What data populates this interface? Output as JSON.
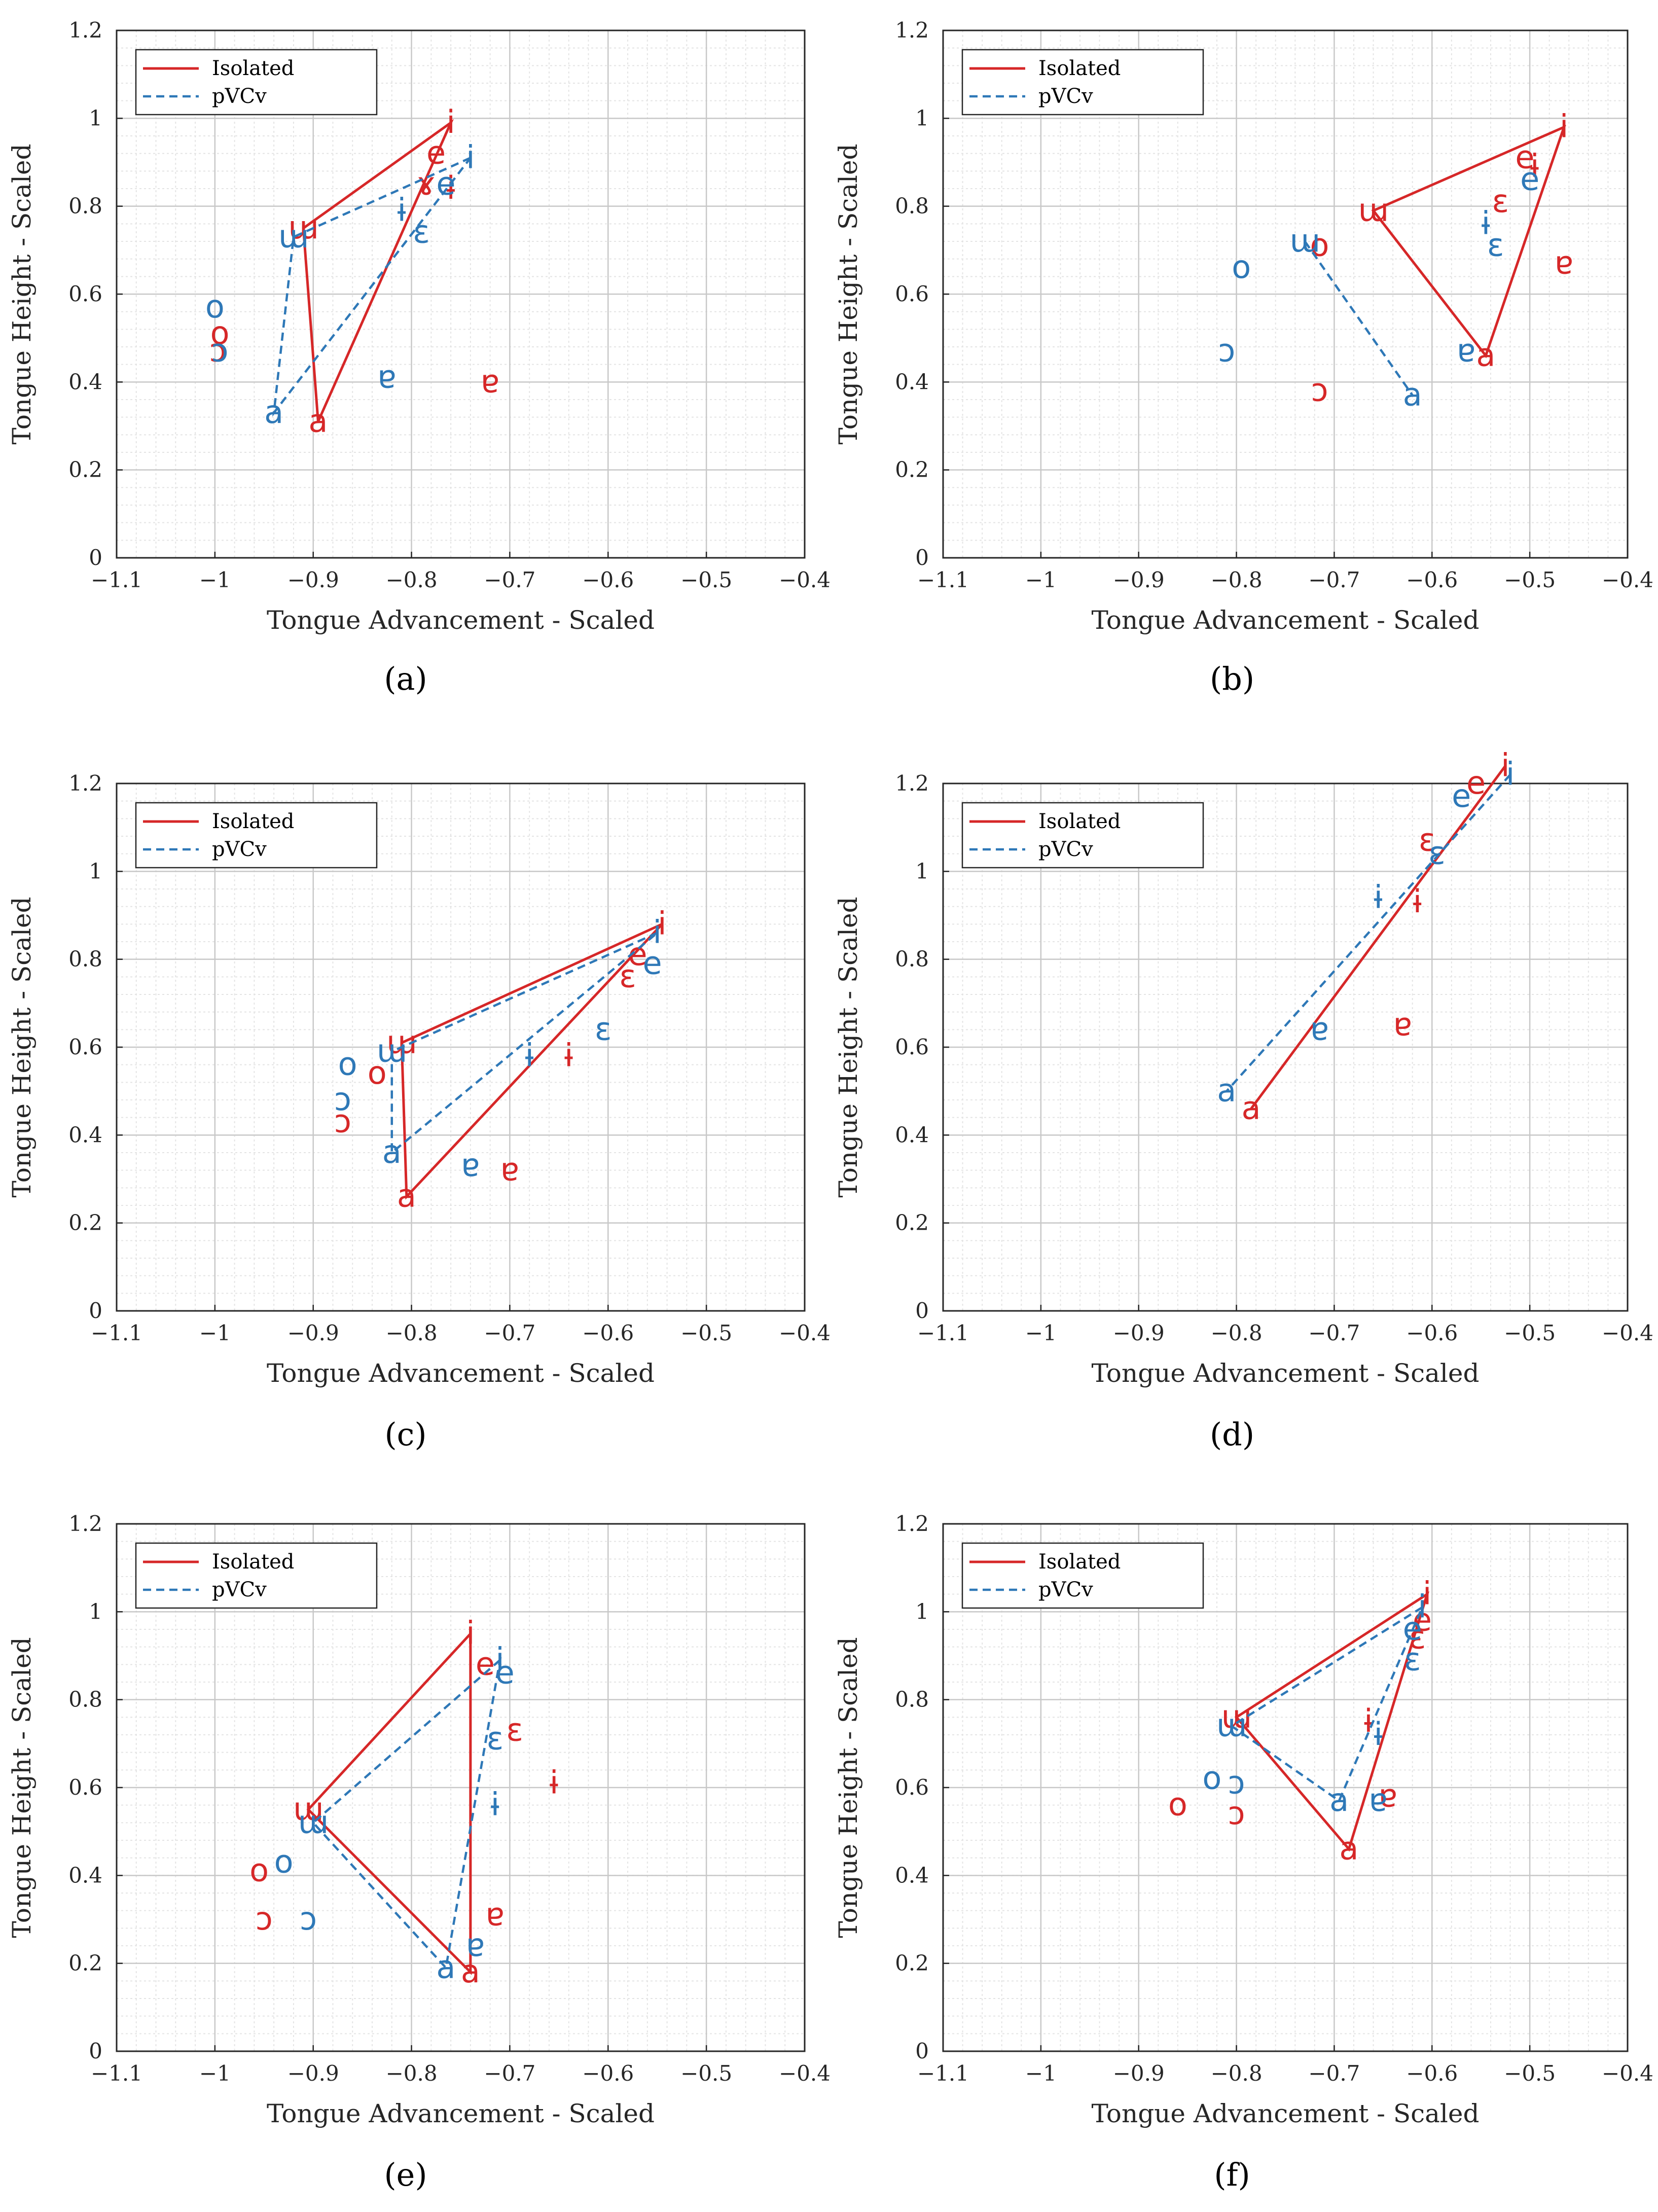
{
  "colors": {
    "isolated": "#d62728",
    "pvcv": "#2e78b7",
    "grid": "#c8c8c8",
    "minor_grid": "#e4e4e4",
    "axis": "#262626"
  },
  "chart_data": [
    {
      "type": "scatter",
      "caption": "(a)",
      "caption_letter": "a",
      "xlabel": "Tongue Advancement - Scaled",
      "ylabel": "Tongue Height - Scaled",
      "xlim": [
        -1.1,
        -0.4
      ],
      "ylim": [
        0,
        1.2
      ],
      "xticks": [
        "−1.1",
        "−1",
        "−0.9",
        "−0.8",
        "−0.7",
        "−0.6",
        "−0.5",
        "−0.4"
      ],
      "yticks": [
        "0",
        "0.2",
        "0.4",
        "0.6",
        "0.8",
        "1",
        "1.2"
      ],
      "legend": [
        "Isolated",
        "pVCv"
      ],
      "series": [
        {
          "name": "Isolated",
          "triangle": [
            [
              -0.76,
              0.99
            ],
            [
              -0.91,
              0.75
            ],
            [
              -0.895,
              0.31
            ]
          ],
          "points": [
            [
              "i",
              -0.76,
              0.99
            ],
            [
              "ɯ",
              -0.91,
              0.75
            ],
            [
              "a",
              -0.895,
              0.31
            ],
            [
              "e",
              -0.775,
              0.92
            ],
            [
              "ɤ",
              -0.785,
              0.85
            ],
            [
              "ɨ",
              -0.76,
              0.84
            ],
            [
              "o",
              -0.995,
              0.51
            ],
            [
              "ɔ",
              -0.997,
              0.47
            ],
            [
              "ɐ",
              -0.72,
              0.4
            ]
          ]
        },
        {
          "name": "pVCv",
          "triangle": [
            [
              -0.74,
              0.91
            ],
            [
              -0.92,
              0.73
            ],
            [
              -0.94,
              0.33
            ]
          ],
          "points": [
            [
              "i",
              -0.74,
              0.91
            ],
            [
              "ɯ",
              -0.92,
              0.73
            ],
            [
              "a",
              -0.94,
              0.33
            ],
            [
              "e",
              -0.765,
              0.85
            ],
            [
              "ɛ",
              -0.79,
              0.74
            ],
            [
              "ɨ",
              -0.81,
              0.79
            ],
            [
              "o",
              -1.0,
              0.57
            ],
            [
              "ɔ",
              -0.995,
              0.47
            ],
            [
              "ɐ",
              -0.825,
              0.41
            ]
          ]
        }
      ]
    },
    {
      "type": "scatter",
      "caption": "(b)",
      "caption_letter": "b",
      "xlabel": "Tongue Advancement - Scaled",
      "ylabel": "Tongue Height - Scaled",
      "xlim": [
        -1.1,
        -0.4
      ],
      "ylim": [
        0,
        1.2
      ],
      "xticks": [
        "−1.1",
        "−1",
        "−0.9",
        "−0.8",
        "−0.7",
        "−0.6",
        "−0.5",
        "−0.4"
      ],
      "yticks": [
        "0",
        "0.2",
        "0.4",
        "0.6",
        "0.8",
        "1",
        "1.2"
      ],
      "legend": [
        "Isolated",
        "pVCv"
      ],
      "series": [
        {
          "name": "Isolated",
          "triangle": [
            [
              -0.465,
              0.98
            ],
            [
              -0.66,
              0.79
            ],
            [
              -0.545,
              0.46
            ]
          ],
          "points": [
            [
              "i",
              -0.465,
              0.98
            ],
            [
              "ɯ",
              -0.66,
              0.79
            ],
            [
              "a",
              -0.545,
              0.46
            ],
            [
              "e",
              -0.505,
              0.91
            ],
            [
              "ɨ",
              -0.495,
              0.89
            ],
            [
              "ɛ",
              -0.53,
              0.81
            ],
            [
              "o",
              -0.715,
              0.71
            ],
            [
              "ɔ",
              -0.715,
              0.38
            ],
            [
              "ɐ",
              -0.465,
              0.67
            ]
          ]
        },
        {
          "name": "pVCv",
          "triangle": [
            [
              -0.73,
              0.72
            ],
            [
              -0.62,
              0.37
            ]
          ],
          "points": [
            [
              "ɯ",
              -0.73,
              0.72
            ],
            [
              "a",
              -0.62,
              0.37
            ],
            [
              "e",
              -0.5,
              0.86
            ],
            [
              "ɨ",
              -0.545,
              0.76
            ],
            [
              "ɛ",
              -0.535,
              0.71
            ],
            [
              "o",
              -0.795,
              0.66
            ],
            [
              "ɔ",
              -0.81,
              0.47
            ],
            [
              "ɐ",
              -0.565,
              0.47
            ]
          ]
        }
      ]
    },
    {
      "type": "scatter",
      "caption": "(c)",
      "caption_letter": "c",
      "xlabel": "Tongue Advancement - Scaled",
      "ylabel": "Tongue Height - Scaled",
      "xlim": [
        -1.1,
        -0.4
      ],
      "ylim": [
        0,
        1.2
      ],
      "xticks": [
        "−1.1",
        "−1",
        "−0.9",
        "−0.8",
        "−0.7",
        "−0.6",
        "−0.5",
        "−0.4"
      ],
      "yticks": [
        "0",
        "0.2",
        "0.4",
        "0.6",
        "0.8",
        "1",
        "1.2"
      ],
      "legend": [
        "Isolated",
        "pVCv"
      ],
      "series": [
        {
          "name": "Isolated",
          "triangle": [
            [
              -0.545,
              0.88
            ],
            [
              -0.81,
              0.61
            ],
            [
              -0.805,
              0.26
            ]
          ],
          "points": [
            [
              "i",
              -0.545,
              0.88
            ],
            [
              "ɯ",
              -0.81,
              0.61
            ],
            [
              "a",
              -0.805,
              0.26
            ],
            [
              "e",
              -0.57,
              0.81
            ],
            [
              "ɛ",
              -0.58,
              0.76
            ],
            [
              "ɨ",
              -0.64,
              0.58
            ],
            [
              "o",
              -0.835,
              0.54
            ],
            [
              "ɔ",
              -0.87,
              0.43
            ],
            [
              "ɐ",
              -0.7,
              0.32
            ]
          ]
        },
        {
          "name": "pVCv",
          "triangle": [
            [
              -0.55,
              0.86
            ],
            [
              -0.82,
              0.59
            ],
            [
              -0.82,
              0.36
            ]
          ],
          "points": [
            [
              "i",
              -0.55,
              0.86
            ],
            [
              "ɯ",
              -0.82,
              0.59
            ],
            [
              "a",
              -0.82,
              0.36
            ],
            [
              "e",
              -0.555,
              0.79
            ],
            [
              "ɛ",
              -0.605,
              0.64
            ],
            [
              "ɨ",
              -0.68,
              0.58
            ],
            [
              "o",
              -0.865,
              0.56
            ],
            [
              "ɔ",
              -0.87,
              0.48
            ],
            [
              "ɐ",
              -0.74,
              0.33
            ]
          ]
        }
      ]
    },
    {
      "type": "scatter",
      "caption": "(d)",
      "caption_letter": "d",
      "xlabel": "Tongue Advancement - Scaled",
      "ylabel": "Tongue Height - Scaled",
      "xlim": [
        -1.1,
        -0.4
      ],
      "ylim": [
        0,
        1.2
      ],
      "xticks": [
        "−1.1",
        "−1",
        "−0.9",
        "−0.8",
        "−0.7",
        "−0.6",
        "−0.5",
        "−0.4"
      ],
      "yticks": [
        "0",
        "0.2",
        "0.4",
        "0.6",
        "0.8",
        "1",
        "1.2"
      ],
      "legend": [
        "Isolated",
        "pVCv"
      ],
      "series": [
        {
          "name": "Isolated",
          "triangle": [
            [
              -0.525,
              1.24
            ],
            [
              -0.785,
              0.46
            ]
          ],
          "points": [
            [
              "i",
              -0.525,
              1.24
            ],
            [
              "a",
              -0.785,
              0.46
            ],
            [
              "e",
              -0.555,
              1.2
            ],
            [
              "ɛ",
              -0.605,
              1.07
            ],
            [
              "ɨ",
              -0.615,
              0.93
            ],
            [
              "ɐ",
              -0.63,
              0.65
            ]
          ]
        },
        {
          "name": "pVCv",
          "triangle": [
            [
              -0.52,
              1.22
            ],
            [
              -0.81,
              0.5
            ]
          ],
          "points": [
            [
              "i",
              -0.52,
              1.22
            ],
            [
              "a",
              -0.81,
              0.5
            ],
            [
              "e",
              -0.57,
              1.17
            ],
            [
              "ɛ",
              -0.595,
              1.04
            ],
            [
              "ɨ",
              -0.655,
              0.94
            ],
            [
              "ɐ",
              -0.715,
              0.64
            ]
          ]
        }
      ]
    },
    {
      "type": "scatter",
      "caption": "(e)",
      "caption_letter": "e",
      "xlabel": "Tongue Advancement - Scaled",
      "ylabel": "Tongue Height - Scaled",
      "xlim": [
        -1.1,
        -0.4
      ],
      "ylim": [
        0,
        1.2
      ],
      "xticks": [
        "−1.1",
        "−1",
        "−0.9",
        "−0.8",
        "−0.7",
        "−0.6",
        "−0.5",
        "−0.4"
      ],
      "yticks": [
        "0",
        "0.2",
        "0.4",
        "0.6",
        "0.8",
        "1",
        "1.2"
      ],
      "legend": [
        "Isolated",
        "pVCv"
      ],
      "series": [
        {
          "name": "Isolated",
          "triangle": [
            [
              -0.74,
              0.95
            ],
            [
              -0.905,
              0.55
            ],
            [
              -0.74,
              0.18
            ]
          ],
          "points": [
            [
              "i",
              -0.74,
              0.95
            ],
            [
              "ɯ",
              -0.905,
              0.55
            ],
            [
              "a",
              -0.74,
              0.18
            ],
            [
              "e",
              -0.725,
              0.88
            ],
            [
              "ɛ",
              -0.695,
              0.73
            ],
            [
              "ɨ",
              -0.655,
              0.61
            ],
            [
              "o",
              -0.955,
              0.41
            ],
            [
              "ɔ",
              -0.95,
              0.3
            ],
            [
              "ɐ",
              -0.715,
              0.31
            ]
          ]
        },
        {
          "name": "pVCv",
          "triangle": [
            [
              -0.71,
              0.89
            ],
            [
              -0.9,
              0.52
            ],
            [
              -0.765,
              0.19
            ]
          ],
          "points": [
            [
              "i",
              -0.71,
              0.89
            ],
            [
              "ɯ",
              -0.9,
              0.52
            ],
            [
              "a",
              -0.765,
              0.19
            ],
            [
              "e",
              -0.705,
              0.86
            ],
            [
              "ɛ",
              -0.715,
              0.71
            ],
            [
              "ɨ",
              -0.715,
              0.56
            ],
            [
              "o",
              -0.93,
              0.43
            ],
            [
              "ɔ",
              -0.905,
              0.3
            ],
            [
              "ɐ",
              -0.735,
              0.24
            ]
          ]
        }
      ]
    },
    {
      "type": "scatter",
      "caption": "(f)",
      "caption_letter": "f",
      "xlabel": "Tongue Advancement - Scaled",
      "ylabel": "Tongue Height - Scaled",
      "xlim": [
        -1.1,
        -0.4
      ],
      "ylim": [
        0,
        1.2
      ],
      "xticks": [
        "−1.1",
        "−1",
        "−0.9",
        "−0.8",
        "−0.7",
        "−0.6",
        "−0.5",
        "−0.4"
      ],
      "yticks": [
        "0",
        "0.2",
        "0.4",
        "0.6",
        "0.8",
        "1",
        "1.2"
      ],
      "legend": [
        "Isolated",
        "pVCv"
      ],
      "series": [
        {
          "name": "Isolated",
          "triangle": [
            [
              -0.605,
              1.04
            ],
            [
              -0.8,
              0.76
            ],
            [
              -0.685,
              0.46
            ]
          ],
          "points": [
            [
              "i",
              -0.605,
              1.04
            ],
            [
              "ɯ",
              -0.8,
              0.76
            ],
            [
              "a",
              -0.685,
              0.46
            ],
            [
              "e",
              -0.61,
              0.98
            ],
            [
              "ɛ",
              -0.615,
              0.94
            ],
            [
              "ɨ",
              -0.665,
              0.75
            ],
            [
              "o",
              -0.86,
              0.56
            ],
            [
              "ɔ",
              -0.8,
              0.54
            ],
            [
              "ɐ",
              -0.645,
              0.58
            ]
          ]
        },
        {
          "name": "pVCv",
          "triangle": [
            [
              -0.61,
              1.01
            ],
            [
              -0.805,
              0.74
            ],
            [
              -0.695,
              0.57
            ]
          ],
          "points": [
            [
              "i",
              -0.61,
              1.01
            ],
            [
              "ɯ",
              -0.805,
              0.74
            ],
            [
              "a",
              -0.695,
              0.57
            ],
            [
              "e",
              -0.62,
              0.96
            ],
            [
              "ɛ",
              -0.62,
              0.89
            ],
            [
              "ɨ",
              -0.655,
              0.72
            ],
            [
              "o",
              -0.825,
              0.62
            ],
            [
              "ɔ",
              -0.8,
              0.61
            ],
            [
              "ɐ",
              -0.655,
              0.57
            ]
          ]
        }
      ]
    }
  ]
}
